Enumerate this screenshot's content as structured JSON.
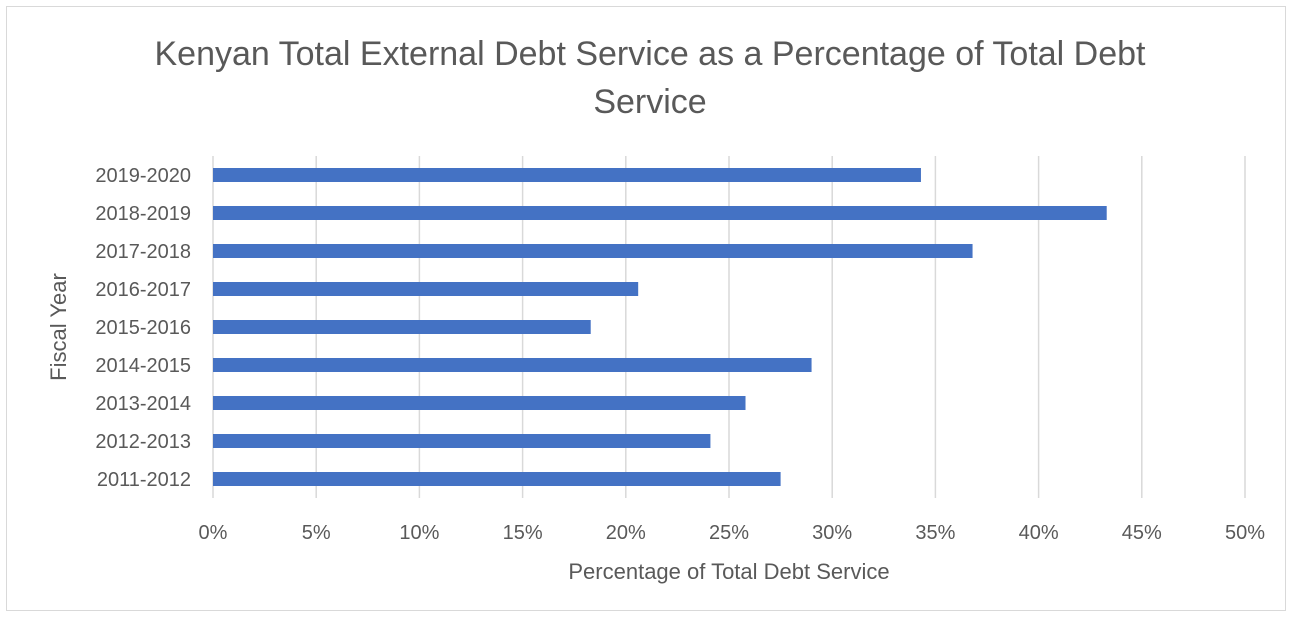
{
  "chart_data": {
    "type": "bar",
    "orientation": "horizontal",
    "title": "Kenyan Total External Debt Service as a Percentage of Total Debt Service",
    "xlabel": "Percentage of Total Debt Service",
    "ylabel": "Fiscal Year",
    "categories": [
      "2011-2012",
      "2012-2013",
      "2013-2014",
      "2014-2015",
      "2015-2016",
      "2016-2017",
      "2017-2018",
      "2018-2019",
      "2019-2020"
    ],
    "values": [
      27.5,
      24.1,
      25.8,
      29.0,
      18.3,
      20.6,
      36.8,
      43.3,
      34.3
    ],
    "value_unit": "%",
    "xlim": [
      0,
      50
    ],
    "x_ticks": [
      0,
      5,
      10,
      15,
      20,
      25,
      30,
      35,
      40,
      45,
      50
    ],
    "x_tick_labels": [
      "0%",
      "5%",
      "10%",
      "15%",
      "20%",
      "25%",
      "30%",
      "35%",
      "40%",
      "45%",
      "50%"
    ],
    "grid": "vertical",
    "legend": "none",
    "colors": {
      "bar": "#4472C4",
      "grid": "#d9d9d9",
      "text": "#595959"
    }
  }
}
